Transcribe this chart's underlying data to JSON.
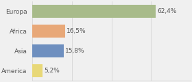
{
  "categories": [
    "Europa",
    "Africa",
    "Asia",
    "America"
  ],
  "values": [
    62.4,
    16.5,
    15.8,
    5.2
  ],
  "labels": [
    "62,4%",
    "16,5%",
    "15,8%",
    "5,2%"
  ],
  "bar_colors": [
    "#a8bb8a",
    "#e8a878",
    "#6e8fbf",
    "#e8d878"
  ],
  "background_color": "#f0f0f0",
  "xlim": [
    0,
    80
  ],
  "bar_height": 0.65,
  "label_fontsize": 6.5,
  "cat_fontsize": 6.5,
  "grid_color": "#d0d0d0"
}
